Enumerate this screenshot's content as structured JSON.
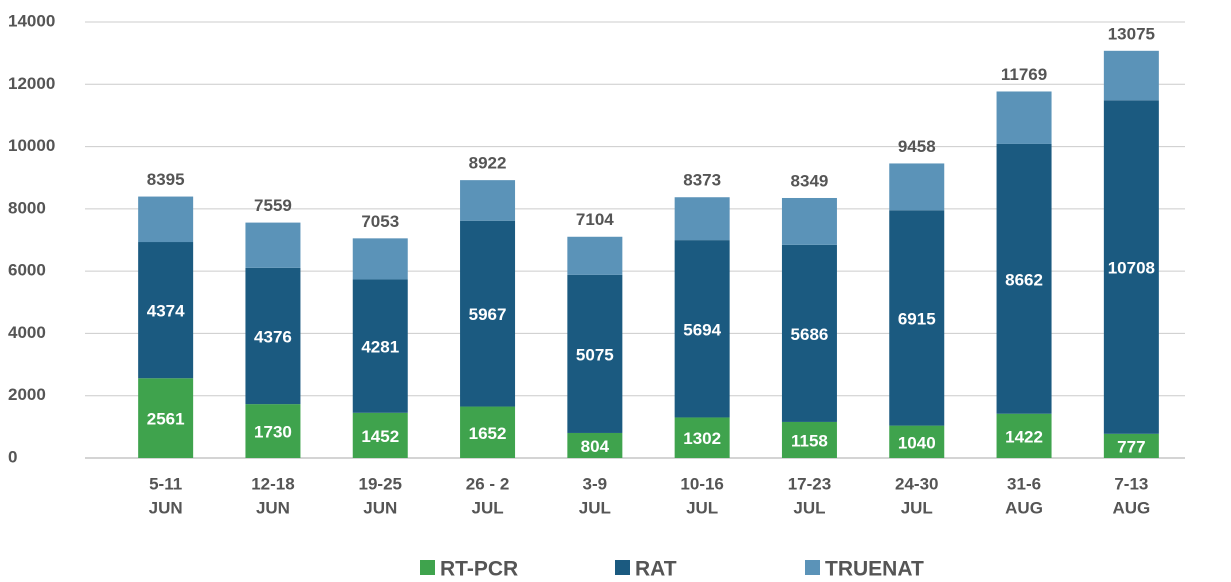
{
  "chart_data": {
    "type": "stacked_bar",
    "categories": [
      [
        "5-11",
        "JUN"
      ],
      [
        "12-18",
        "JUN"
      ],
      [
        "19-25",
        "JUN"
      ],
      [
        "26 - 2",
        "JUL"
      ],
      [
        "3-9",
        "JUL"
      ],
      [
        "10-16",
        "JUL"
      ],
      [
        "17-23",
        "JUL"
      ],
      [
        "24-30",
        "JUL"
      ],
      [
        "31-6",
        "AUG"
      ],
      [
        "7-13",
        "AUG"
      ]
    ],
    "series": [
      {
        "name": "RT-PCR",
        "color": "#3fa34d",
        "values": [
          2561,
          1730,
          1452,
          1652,
          804,
          1302,
          1158,
          1040,
          1422,
          777
        ]
      },
      {
        "name": "RAT",
        "color": "#1b5a80",
        "values": [
          4374,
          4376,
          4281,
          5967,
          5075,
          5694,
          5686,
          6915,
          8662,
          10708
        ]
      },
      {
        "name": "TRUENAT",
        "color": "#5b93b8",
        "values": [
          1460,
          1453,
          1320,
          1303,
          1225,
          1377,
          1505,
          1503,
          1685,
          1590
        ]
      }
    ],
    "series_labels": [
      true,
      true,
      false
    ],
    "totals": [
      8395,
      7559,
      7053,
      8922,
      7104,
      8373,
      8349,
      9458,
      11769,
      13075
    ],
    "ylim": [
      0,
      14000
    ],
    "yticks": [
      0,
      2000,
      4000,
      6000,
      8000,
      10000,
      12000,
      14000
    ],
    "grid": true,
    "legend": "bottom"
  }
}
